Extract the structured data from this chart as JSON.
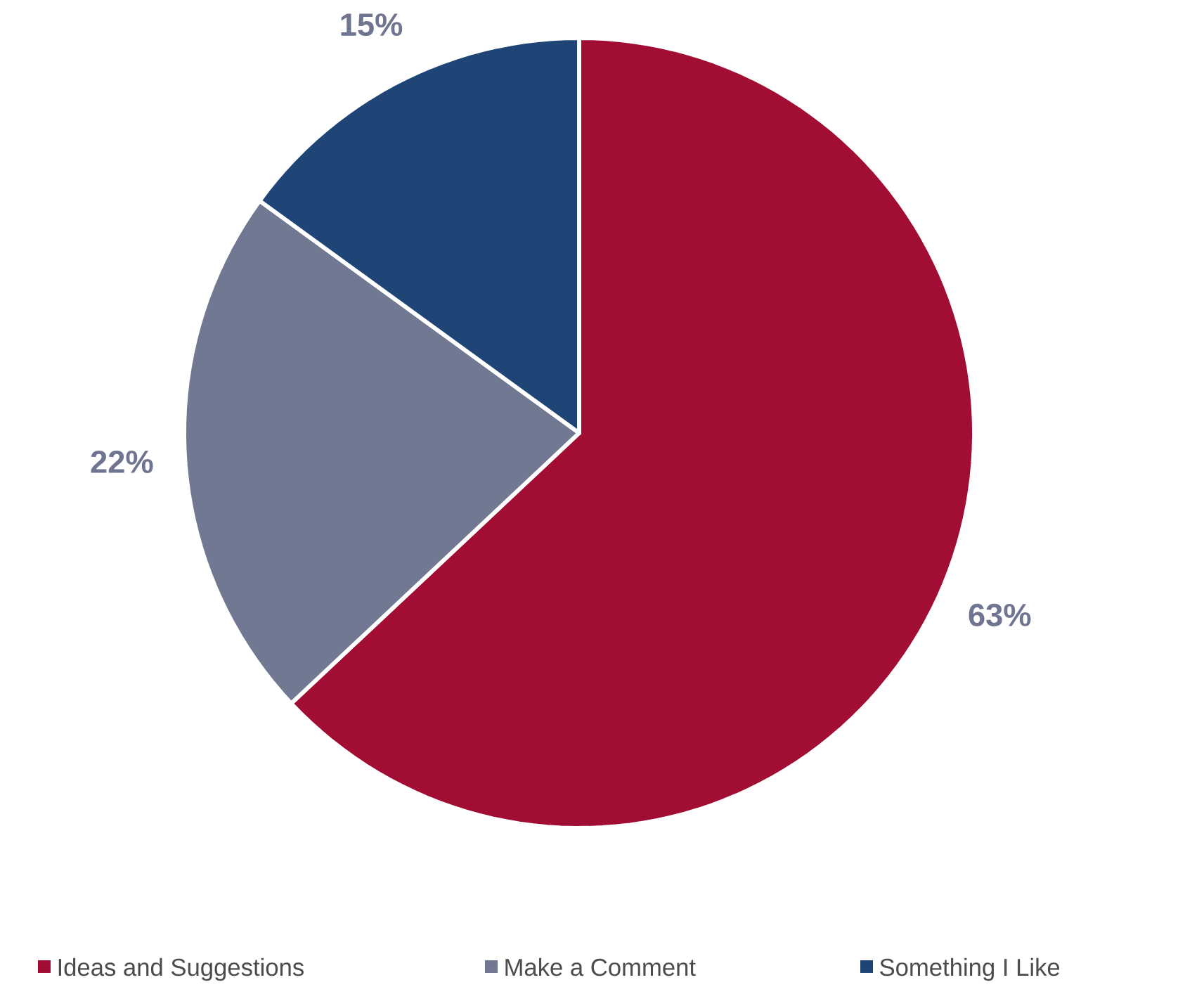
{
  "chart_data": {
    "type": "pie",
    "categories": [
      "Ideas and Suggestions",
      "Make a Comment",
      "Something I Like"
    ],
    "values": [
      63,
      22,
      15
    ],
    "colors": [
      "#a20e33",
      "#717891",
      "#1f4576"
    ],
    "value_labels": [
      "63%",
      "22%",
      "15%"
    ],
    "legend": "bottom"
  }
}
